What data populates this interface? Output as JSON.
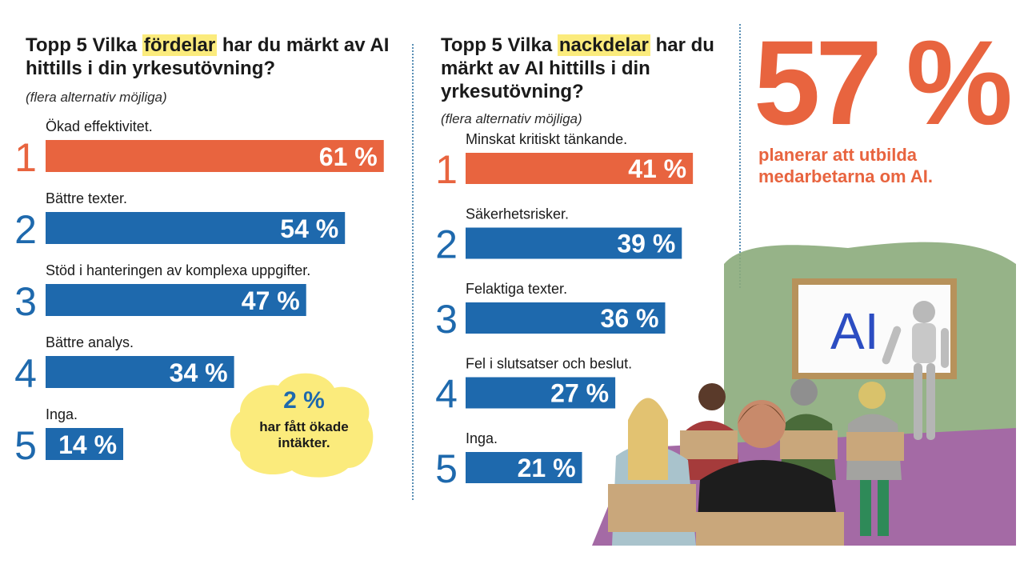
{
  "colors": {
    "first": "#e8643f",
    "rest": "#1e69ad",
    "highlight": "#fbeb7c",
    "cloud": "#fbeb7c",
    "accent": "#e8643f"
  },
  "chart_data": [
    {
      "type": "bar",
      "title_parts": [
        "Topp 5 Vilka ",
        "fördelar",
        " har du märkt av AI hittills i din yrkesutövning?"
      ],
      "subtitle": "(flera alternativ möjliga)",
      "ranks": [
        "1",
        "2",
        "3",
        "4",
        "5"
      ],
      "categories": [
        "Ökad effektivitet.",
        "Bättre texter.",
        "Stöd i hanteringen av komplexa uppgifter.",
        "Bättre analys.",
        "Inga."
      ],
      "values": [
        61,
        54,
        47,
        34,
        14
      ],
      "value_labels": [
        "61 %",
        "54 %",
        "47 %",
        "34 %",
        "14 %"
      ],
      "unit": "%"
    },
    {
      "type": "bar",
      "title_parts": [
        "Topp 5 Vilka ",
        "nackdelar",
        " har du märkt av AI hittills i din yrkesutövning?"
      ],
      "subtitle": "(flera alternativ möjliga)",
      "ranks": [
        "1",
        "2",
        "3",
        "4",
        "5"
      ],
      "categories": [
        "Minskat kritiskt tänkande.",
        "Säkerhetsrisker.",
        "Felaktiga texter.",
        "Fel i slutsatser och beslut.",
        "Inga."
      ],
      "values": [
        41,
        39,
        36,
        27,
        21
      ],
      "value_labels": [
        "41 %",
        "39 %",
        "36 %",
        "27 %",
        "21 %"
      ],
      "unit": "%"
    }
  ],
  "callout": {
    "value": "2 %",
    "text_line1": "har fått ökade",
    "text_line2": "intäkter."
  },
  "highlight_stat": {
    "value": "57 %",
    "text_line1": "planerar att utbilda",
    "text_line2": "medarbetarna om AI."
  },
  "illustration": {
    "board_text": "AI"
  }
}
